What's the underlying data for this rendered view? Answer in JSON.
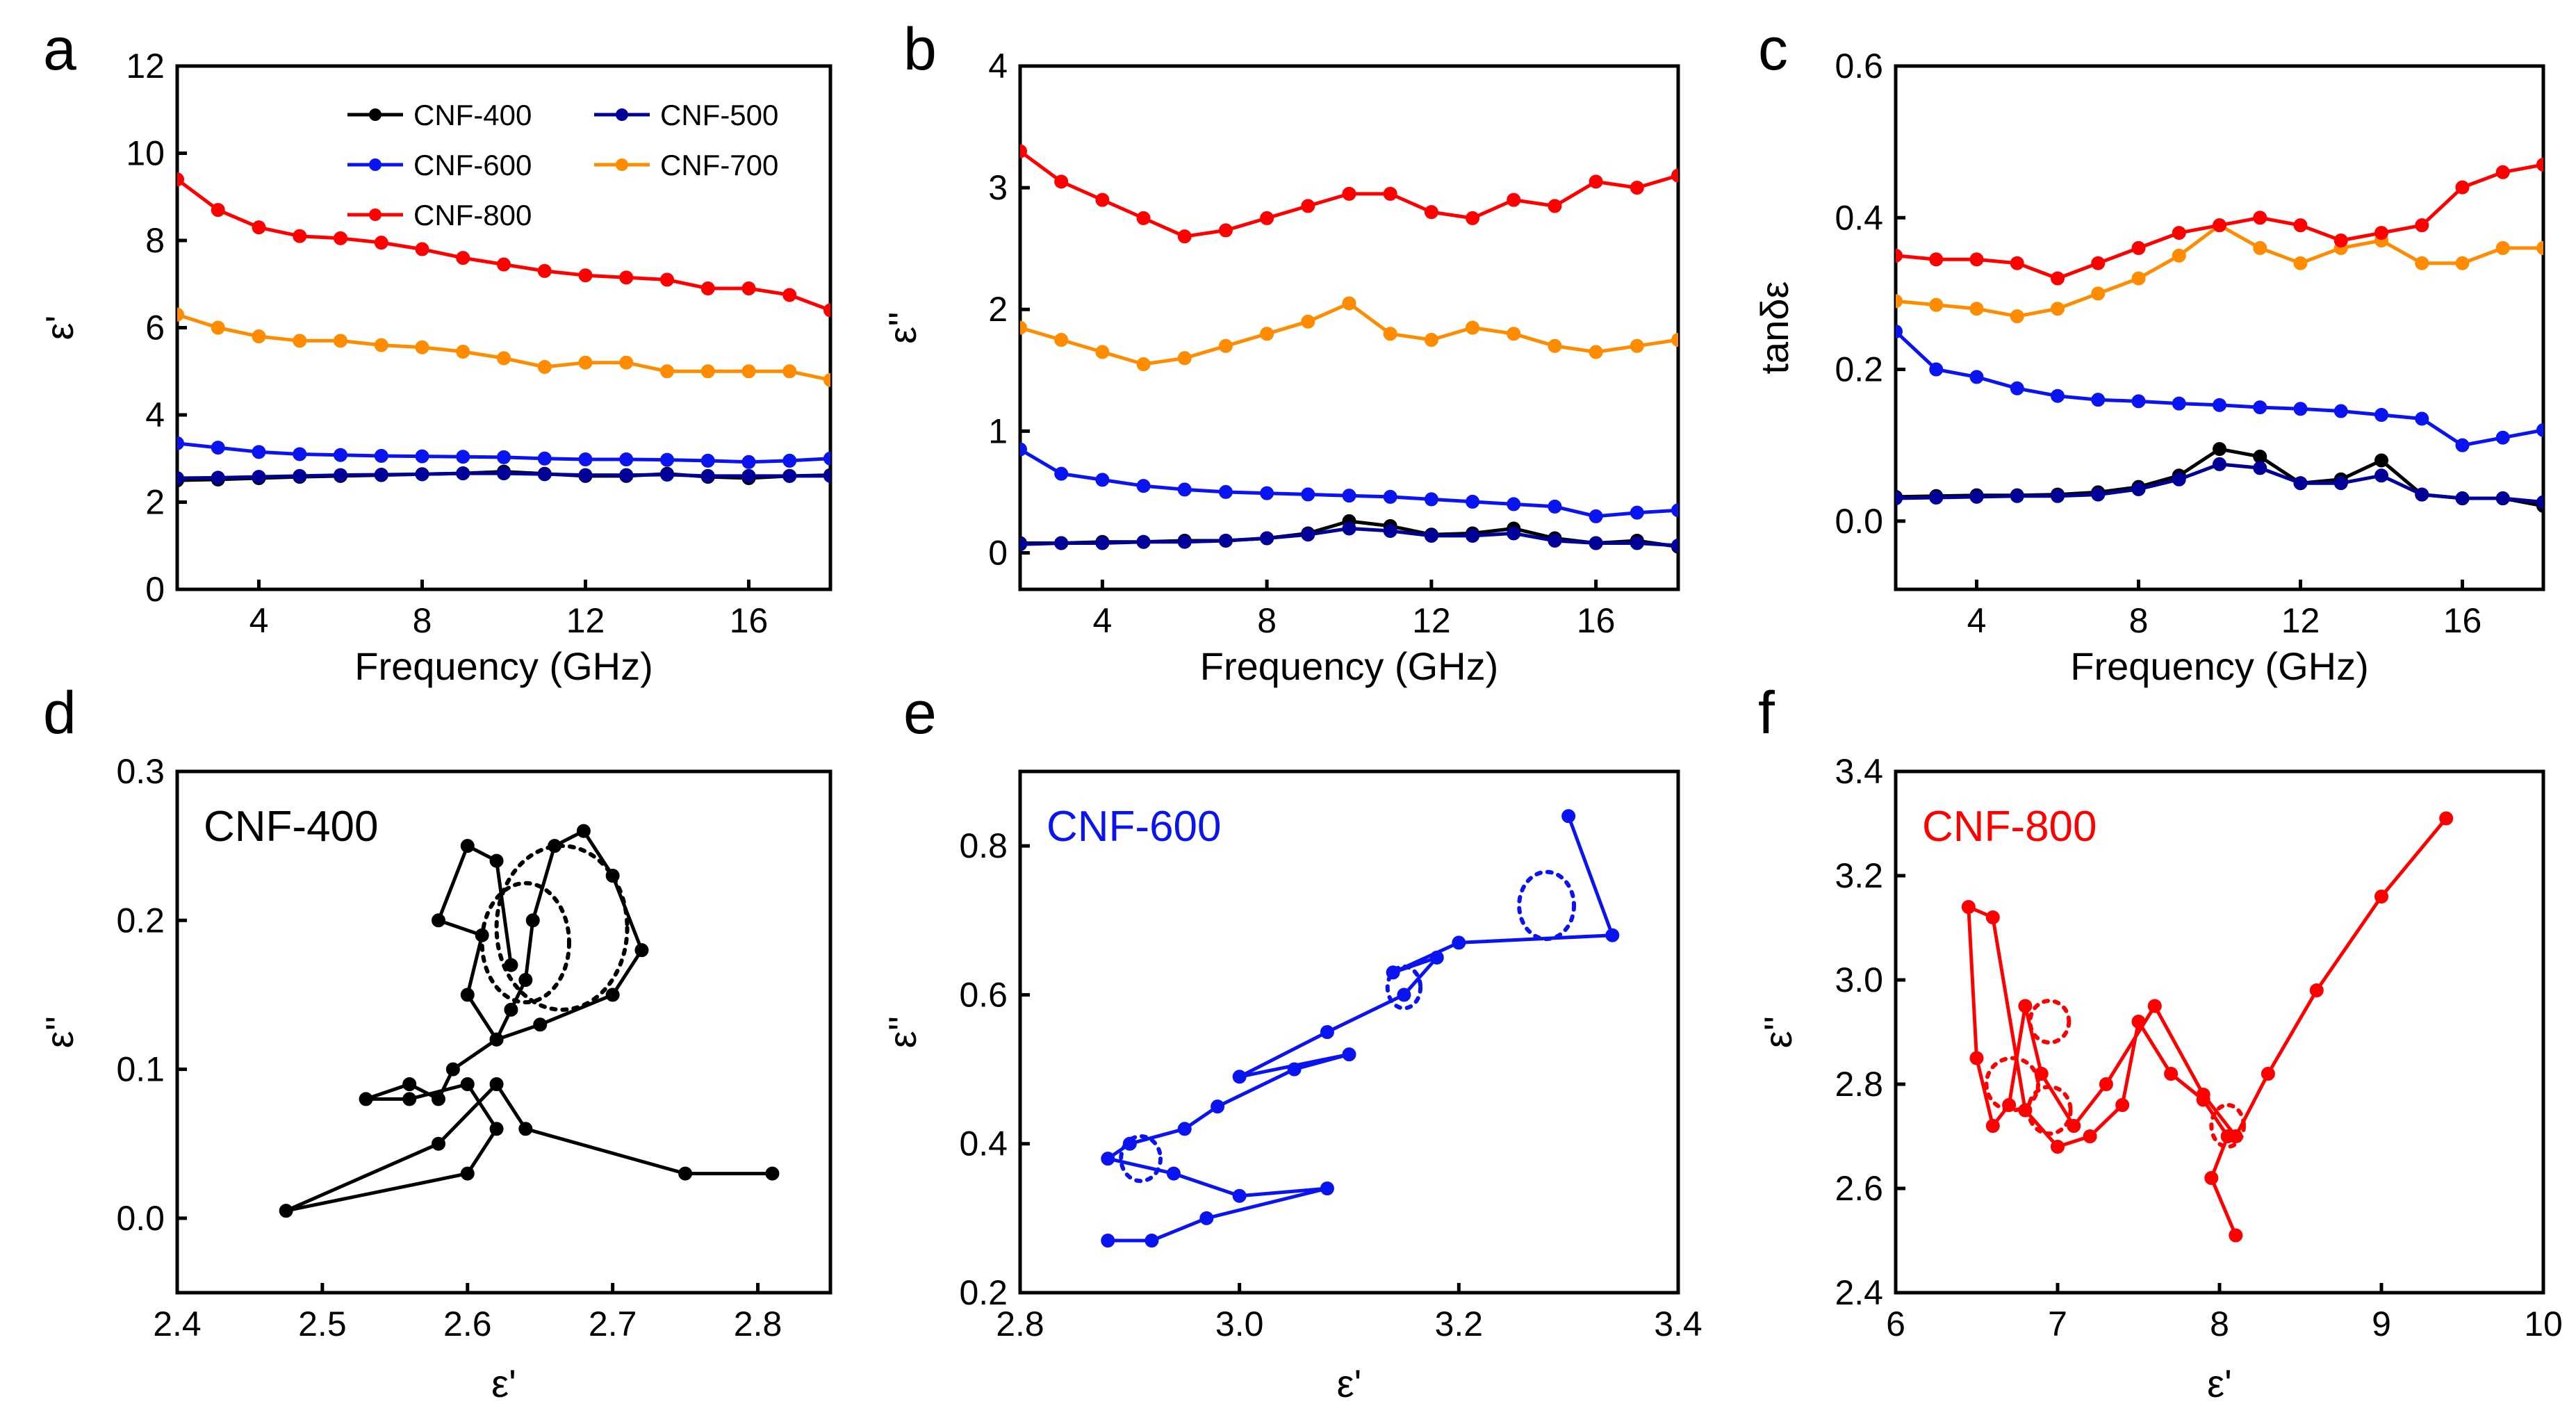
{
  "colors": {
    "CNF-400": "#000000",
    "CNF-500": "#000099",
    "CNF-600": "#0a14f0",
    "CNF-700": "#ff8c00",
    "CNF-800": "#ff0000"
  },
  "chart_data": [
    {
      "panel": "a",
      "type": "line",
      "xlabel": "Frequency (GHz)",
      "ylabel": "ε'",
      "xlim": [
        2,
        18
      ],
      "ylim": [
        0,
        12
      ],
      "xticks": [
        4,
        8,
        12,
        16
      ],
      "yticks": [
        0,
        2,
        4,
        6,
        8,
        10,
        12
      ],
      "legend": {
        "placement": "top-right",
        "entries": [
          "CNF-400",
          "CNF-500",
          "CNF-600",
          "CNF-700",
          "CNF-800"
        ]
      },
      "x": [
        2,
        3,
        4,
        5,
        6,
        7,
        8,
        9,
        10,
        11,
        12,
        13,
        14,
        15,
        16,
        17,
        18
      ],
      "series": [
        {
          "name": "CNF-400",
          "values": [
            2.5,
            2.52,
            2.55,
            2.58,
            2.6,
            2.62,
            2.64,
            2.66,
            2.7,
            2.65,
            2.6,
            2.6,
            2.65,
            2.58,
            2.55,
            2.6,
            2.62
          ]
        },
        {
          "name": "CNF-500",
          "values": [
            2.55,
            2.56,
            2.58,
            2.6,
            2.62,
            2.63,
            2.64,
            2.66,
            2.66,
            2.64,
            2.62,
            2.62,
            2.63,
            2.6,
            2.6,
            2.6,
            2.6
          ]
        },
        {
          "name": "CNF-600",
          "values": [
            3.35,
            3.25,
            3.15,
            3.1,
            3.08,
            3.06,
            3.05,
            3.04,
            3.03,
            3.0,
            2.98,
            2.98,
            2.97,
            2.95,
            2.92,
            2.95,
            3.0
          ]
        },
        {
          "name": "CNF-700",
          "values": [
            6.3,
            6.0,
            5.8,
            5.7,
            5.7,
            5.6,
            5.55,
            5.45,
            5.3,
            5.1,
            5.2,
            5.2,
            5.0,
            5.0,
            5.0,
            5.0,
            4.8
          ]
        },
        {
          "name": "CNF-800",
          "values": [
            9.4,
            8.7,
            8.3,
            8.1,
            8.05,
            7.95,
            7.8,
            7.6,
            7.45,
            7.3,
            7.2,
            7.15,
            7.1,
            6.9,
            6.9,
            6.75,
            6.4
          ]
        }
      ]
    },
    {
      "panel": "b",
      "type": "line",
      "xlabel": "Frequency (GHz)",
      "ylabel": "ε''",
      "xlim": [
        2,
        18
      ],
      "ylim": [
        -0.3,
        4
      ],
      "xticks": [
        4,
        8,
        12,
        16
      ],
      "yticks": [
        0,
        1,
        2,
        3,
        4
      ],
      "x": [
        2,
        3,
        4,
        5,
        6,
        7,
        8,
        9,
        10,
        11,
        12,
        13,
        14,
        15,
        16,
        17,
        18
      ],
      "series": [
        {
          "name": "CNF-400",
          "values": [
            0.08,
            0.08,
            0.09,
            0.09,
            0.1,
            0.1,
            0.12,
            0.16,
            0.26,
            0.22,
            0.15,
            0.16,
            0.2,
            0.12,
            0.08,
            0.1,
            0.05
          ]
        },
        {
          "name": "CNF-500",
          "values": [
            0.07,
            0.08,
            0.08,
            0.09,
            0.09,
            0.1,
            0.12,
            0.15,
            0.2,
            0.18,
            0.14,
            0.14,
            0.16,
            0.1,
            0.08,
            0.08,
            0.06
          ]
        },
        {
          "name": "CNF-600",
          "values": [
            0.85,
            0.65,
            0.6,
            0.55,
            0.52,
            0.5,
            0.49,
            0.48,
            0.47,
            0.46,
            0.44,
            0.42,
            0.4,
            0.38,
            0.3,
            0.33,
            0.35
          ]
        },
        {
          "name": "CNF-700",
          "values": [
            1.85,
            1.75,
            1.65,
            1.55,
            1.6,
            1.7,
            1.8,
            1.9,
            2.05,
            1.8,
            1.75,
            1.85,
            1.8,
            1.7,
            1.65,
            1.7,
            1.75
          ]
        },
        {
          "name": "CNF-800",
          "values": [
            3.3,
            3.05,
            2.9,
            2.75,
            2.6,
            2.65,
            2.75,
            2.85,
            2.95,
            2.95,
            2.8,
            2.75,
            2.9,
            2.85,
            3.05,
            3.0,
            3.1
          ]
        }
      ]
    },
    {
      "panel": "c",
      "type": "line",
      "xlabel": "Frequency (GHz)",
      "ylabel": "tanδε",
      "xlim": [
        2,
        18
      ],
      "ylim": [
        -0.09,
        0.6
      ],
      "xticks": [
        4,
        8,
        12,
        16
      ],
      "yticks": [
        0.0,
        0.2,
        0.4,
        0.6
      ],
      "x": [
        2,
        3,
        4,
        5,
        6,
        7,
        8,
        9,
        10,
        11,
        12,
        13,
        14,
        15,
        16,
        17,
        18
      ],
      "series": [
        {
          "name": "CNF-400",
          "values": [
            0.032,
            0.033,
            0.034,
            0.034,
            0.035,
            0.038,
            0.045,
            0.06,
            0.095,
            0.085,
            0.05,
            0.055,
            0.08,
            0.035,
            0.03,
            0.03,
            0.02
          ]
        },
        {
          "name": "CNF-500",
          "values": [
            0.03,
            0.031,
            0.032,
            0.033,
            0.033,
            0.035,
            0.042,
            0.055,
            0.075,
            0.07,
            0.05,
            0.05,
            0.06,
            0.035,
            0.03,
            0.03,
            0.025
          ]
        },
        {
          "name": "CNF-600",
          "values": [
            0.25,
            0.2,
            0.19,
            0.175,
            0.165,
            0.16,
            0.158,
            0.155,
            0.153,
            0.15,
            0.148,
            0.145,
            0.14,
            0.135,
            0.1,
            0.11,
            0.12
          ]
        },
        {
          "name": "CNF-700",
          "values": [
            0.29,
            0.285,
            0.28,
            0.27,
            0.28,
            0.3,
            0.32,
            0.35,
            0.39,
            0.36,
            0.34,
            0.36,
            0.37,
            0.34,
            0.34,
            0.36,
            0.36
          ]
        },
        {
          "name": "CNF-800",
          "values": [
            0.35,
            0.345,
            0.345,
            0.34,
            0.32,
            0.34,
            0.36,
            0.38,
            0.39,
            0.4,
            0.39,
            0.37,
            0.38,
            0.39,
            0.44,
            0.46,
            0.47
          ]
        }
      ]
    },
    {
      "panel": "d",
      "type": "line",
      "annotation": "CNF-400",
      "annotation_color": "#000000",
      "xlabel": "ε'",
      "ylabel": "ε''",
      "xlim": [
        2.4,
        2.85
      ],
      "ylim": [
        -0.05,
        0.3
      ],
      "xticks": [
        2.4,
        2.5,
        2.6,
        2.7,
        2.8
      ],
      "ytick_labels": [
        "0.0",
        "0.1",
        "0.2",
        "0.3"
      ],
      "yticks": [
        0.0,
        0.1,
        0.2,
        0.3
      ],
      "series": [
        {
          "name": "CNF-400",
          "x": [
            2.81,
            2.75,
            2.64,
            2.62,
            2.58,
            2.475,
            2.6,
            2.62,
            2.6,
            2.56,
            2.53,
            2.56,
            2.58,
            2.59,
            2.62,
            2.63,
            2.64,
            2.645,
            2.66,
            2.68,
            2.7,
            2.72,
            2.7,
            2.65,
            2.62,
            2.6,
            2.61,
            2.58,
            2.6,
            2.62,
            2.63
          ],
          "y": [
            0.03,
            0.03,
            0.06,
            0.09,
            0.05,
            0.005,
            0.03,
            0.06,
            0.09,
            0.08,
            0.08,
            0.09,
            0.08,
            0.1,
            0.12,
            0.14,
            0.16,
            0.2,
            0.25,
            0.26,
            0.23,
            0.18,
            0.15,
            0.13,
            0.12,
            0.15,
            0.19,
            0.2,
            0.25,
            0.24,
            0.17
          ]
        }
      ],
      "circles": [
        {
          "cx": 2.665,
          "cy": 0.195,
          "rx": 0.045,
          "ry": 0.055
        },
        {
          "cx": 2.64,
          "cy": 0.185,
          "rx": 0.03,
          "ry": 0.04
        }
      ]
    },
    {
      "panel": "e",
      "type": "line",
      "annotation": "CNF-600",
      "annotation_color": "#0a14f0",
      "xlabel": "ε'",
      "ylabel": "ε''",
      "xlim": [
        2.8,
        3.4
      ],
      "ylim": [
        0.2,
        0.9
      ],
      "xticks": [
        2.8,
        3.0,
        3.2,
        3.4
      ],
      "ytick_labels": [
        "0.2",
        "0.4",
        "0.6",
        "0.8"
      ],
      "yticks": [
        0.2,
        0.4,
        0.6,
        0.8
      ],
      "series": [
        {
          "name": "CNF-600",
          "x": [
            2.88,
            2.92,
            2.97,
            3.08,
            3.0,
            2.94,
            2.88,
            2.9,
            2.95,
            2.98,
            3.05,
            3.1,
            3.0,
            3.08,
            3.15,
            3.18,
            3.14,
            3.2,
            3.34,
            3.3
          ],
          "y": [
            0.27,
            0.27,
            0.3,
            0.34,
            0.33,
            0.36,
            0.38,
            0.4,
            0.42,
            0.45,
            0.5,
            0.52,
            0.49,
            0.55,
            0.6,
            0.65,
            0.63,
            0.67,
            0.68,
            0.84
          ]
        }
      ],
      "circles": [
        {
          "cx": 3.28,
          "cy": 0.72,
          "rx": 0.025,
          "ry": 0.045
        },
        {
          "cx": 3.15,
          "cy": 0.61,
          "rx": 0.015,
          "ry": 0.028
        },
        {
          "cx": 2.91,
          "cy": 0.38,
          "rx": 0.018,
          "ry": 0.03
        }
      ]
    },
    {
      "panel": "f",
      "type": "line",
      "annotation": "CNF-800",
      "annotation_color": "#ff0000",
      "xlabel": "ε'",
      "ylabel": "ε''",
      "xlim": [
        6,
        10
      ],
      "ylim": [
        2.4,
        3.4
      ],
      "xticks": [
        6,
        7,
        8,
        9,
        10
      ],
      "ytick_labels": [
        "2.4",
        "2.6",
        "2.8",
        "3.0",
        "3.2",
        "3.4"
      ],
      "yticks": [
        2.4,
        2.6,
        2.8,
        3.0,
        3.2,
        3.4
      ],
      "series": [
        {
          "name": "CNF-800",
          "x": [
            8.1,
            7.95,
            8.05,
            7.9,
            7.7,
            7.5,
            7.4,
            7.2,
            7.0,
            6.8,
            6.6,
            6.45,
            6.5,
            6.6,
            6.7,
            6.8,
            6.9,
            7.1,
            7.3,
            7.6,
            7.9,
            8.1,
            8.3,
            8.6,
            9.0,
            9.4
          ],
          "y": [
            2.51,
            2.62,
            2.7,
            2.77,
            2.82,
            2.92,
            2.76,
            2.7,
            2.68,
            2.75,
            3.12,
            3.14,
            2.85,
            2.72,
            2.76,
            2.95,
            2.82,
            2.72,
            2.8,
            2.95,
            2.78,
            2.7,
            2.82,
            2.98,
            3.16,
            3.31
          ]
        }
      ],
      "circles": [
        {
          "cx": 6.95,
          "cy": 2.92,
          "rx": 0.12,
          "ry": 0.04
        },
        {
          "cx": 6.72,
          "cy": 2.8,
          "rx": 0.16,
          "ry": 0.05
        },
        {
          "cx": 6.95,
          "cy": 2.75,
          "rx": 0.13,
          "ry": 0.045
        },
        {
          "cx": 8.05,
          "cy": 2.72,
          "rx": 0.1,
          "ry": 0.04
        }
      ]
    }
  ]
}
